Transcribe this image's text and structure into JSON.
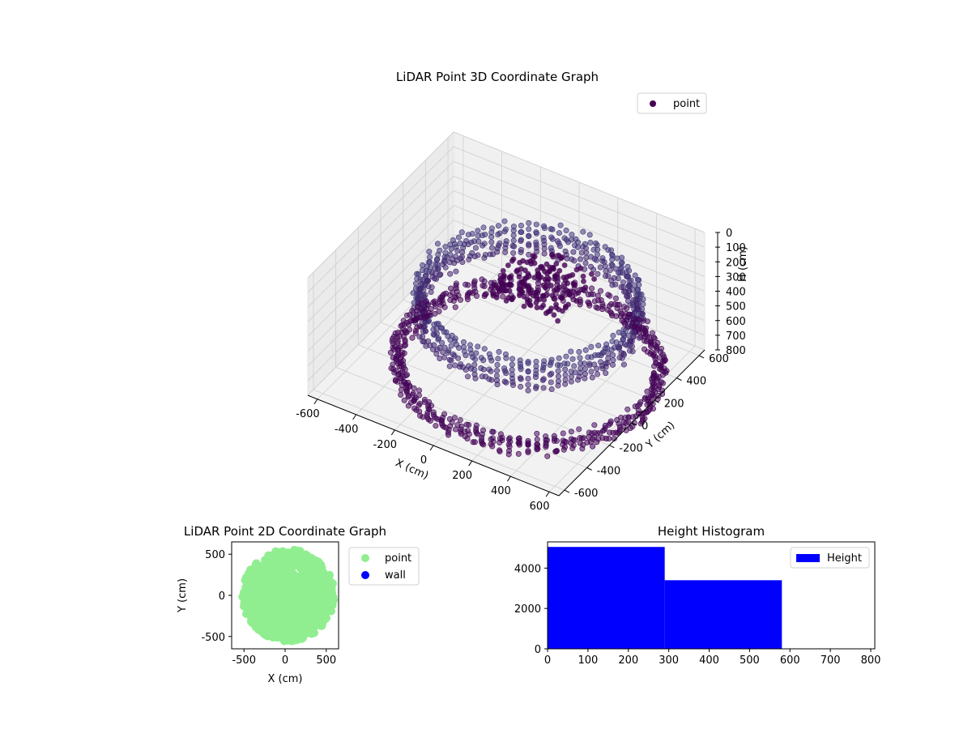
{
  "chart_data": [
    {
      "type": "scatter3d",
      "title": "LiDAR Point 3D Coordinate Graph",
      "xlabel": "X (cm)",
      "ylabel": "Y (cm)",
      "zlabel": "H (cm)",
      "xlim": [
        -650,
        650
      ],
      "ylim": [
        -650,
        650
      ],
      "zlim": [
        800,
        0
      ],
      "xticks": [
        -600,
        -400,
        -200,
        0,
        200,
        400,
        600
      ],
      "yticks": [
        -600,
        -400,
        -200,
        0,
        200,
        400,
        600
      ],
      "zticks": [
        0,
        100,
        200,
        300,
        400,
        500,
        600,
        700,
        800
      ],
      "grid": true,
      "legend": {
        "position": "top-right",
        "entries": [
          {
            "name": "point",
            "color": "#440154"
          }
        ]
      },
      "colormap": "viridis",
      "series": [
        {
          "name": "point",
          "color": "#440154",
          "structures": [
            {
              "kind": "ring",
              "radius": 520,
              "h_from": 250,
              "h_to": 450
            },
            {
              "kind": "ring",
              "radius": 620,
              "h_from": 700,
              "h_to": 800
            },
            {
              "kind": "cluster",
              "x": 100,
              "y": 150,
              "h": 250,
              "spread": 180
            }
          ]
        }
      ]
    },
    {
      "type": "scatter",
      "title": "LiDAR Point 2D Coordinate Graph",
      "xlabel": "X (cm)",
      "ylabel": "Y (cm)",
      "xlim": [
        -650,
        650
      ],
      "ylim": [
        -650,
        650
      ],
      "xticks": [
        -500,
        0,
        500
      ],
      "yticks": [
        500,
        0,
        -500
      ],
      "legend": {
        "position": "outside-right",
        "entries": [
          {
            "name": "point",
            "color": "#90ee90"
          },
          {
            "name": "wall",
            "color": "#0000ff"
          }
        ]
      },
      "series": [
        {
          "name": "point",
          "color": "#90ee90",
          "region": "dense disk centred near (100, 0) with radius about 550"
        },
        {
          "name": "wall",
          "color": "#0000ff",
          "values": []
        }
      ]
    },
    {
      "type": "bar",
      "title": "Height Histogram",
      "xlabel": "",
      "ylabel": "",
      "xlim": [
        0,
        810
      ],
      "ylim": [
        0,
        5300
      ],
      "xticks": [
        0,
        100,
        200,
        300,
        400,
        500,
        600,
        700,
        800
      ],
      "yticks": [
        0,
        2000,
        4000
      ],
      "legend": {
        "position": "top-right",
        "entries": [
          {
            "name": "Height",
            "color": "#0000ff"
          }
        ]
      },
      "bins": [
        {
          "from": 0,
          "to": 290,
          "count": 5050
        },
        {
          "from": 290,
          "to": 580,
          "count": 3400
        }
      ]
    }
  ]
}
